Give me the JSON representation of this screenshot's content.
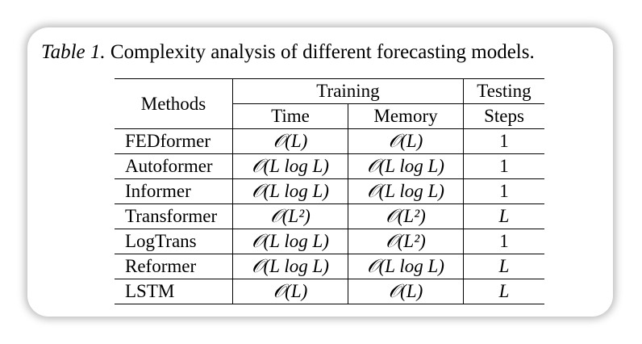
{
  "caption": {
    "label": "Table 1.",
    "text": "Complexity analysis of different forecasting models."
  },
  "table": {
    "header": {
      "methods": "Methods",
      "training": "Training",
      "testing": "Testing",
      "time": "Time",
      "memory": "Memory",
      "steps": "Steps"
    },
    "rows": [
      {
        "method": "FEDformer",
        "time": "𝒪(L)",
        "memory": "𝒪(L)",
        "steps": "1"
      },
      {
        "method": "Autoformer",
        "time": "𝒪(L log L)",
        "memory": "𝒪(L log L)",
        "steps": "1"
      },
      {
        "method": "Informer",
        "time": "𝒪(L log L)",
        "memory": "𝒪(L log L)",
        "steps": "1"
      },
      {
        "method": "Transformer",
        "time": "𝒪(L²)",
        "memory": "𝒪(L²)",
        "steps": "L"
      },
      {
        "method": "LogTrans",
        "time": "𝒪(L log L)",
        "memory": "𝒪(L²)",
        "steps": "1"
      },
      {
        "method": "Reformer",
        "time": "𝒪(L log L)",
        "memory": "𝒪(L log L)",
        "steps": "L"
      },
      {
        "method": "LSTM",
        "time": "𝒪(L)",
        "memory": "𝒪(L)",
        "steps": "L"
      }
    ]
  }
}
